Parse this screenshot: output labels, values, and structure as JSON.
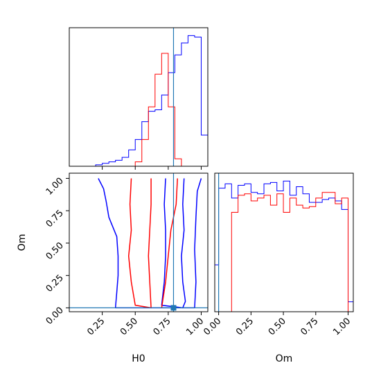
{
  "chart_data": [
    {
      "panel": "H0 marginal histogram",
      "type": "histogram",
      "x_param": "H0",
      "xlim": [
        0.0,
        1.05
      ],
      "truth_x": 0.79,
      "x_ticks": [
        0.25,
        0.5,
        0.75,
        1.0
      ],
      "bin_edges": [
        0.0,
        0.05,
        0.1,
        0.15,
        0.2,
        0.25,
        0.3,
        0.35,
        0.4,
        0.45,
        0.5,
        0.55,
        0.6,
        0.65,
        0.7,
        0.75,
        0.8,
        0.85,
        0.9,
        0.95,
        1.0,
        1.05
      ],
      "series": [
        {
          "color": "#0000ff",
          "values": [
            0,
            0,
            0,
            0,
            1,
            2,
            3,
            4,
            6,
            11,
            18,
            30,
            37,
            38,
            48,
            63,
            75,
            83,
            88,
            87,
            21
          ]
        },
        {
          "color": "#ff0000",
          "values": [
            0,
            0,
            0,
            0,
            0,
            0,
            0,
            0,
            0,
            0,
            3,
            18,
            40,
            62,
            76,
            40,
            5,
            0,
            0,
            0,
            0
          ]
        }
      ]
    },
    {
      "panel": "H0 vs Om contours",
      "type": "contour",
      "x_param": "H0",
      "y_param": "Om",
      "xlim": [
        0.0,
        1.05
      ],
      "ylim": [
        -0.03,
        1.04
      ],
      "xlabel": "H0",
      "ylabel": "Om",
      "x_ticks": [
        0.25,
        0.5,
        0.75,
        1.0
      ],
      "y_ticks": [
        0.0,
        0.25,
        0.5,
        0.75,
        1.0
      ],
      "truth": {
        "x": 0.79,
        "y": 0.0
      },
      "contours": [
        {
          "color": "#0000ff",
          "level": "outer",
          "points": [
            [
              0.22,
              1.0
            ],
            [
              0.26,
              0.92
            ],
            [
              0.28,
              0.82
            ],
            [
              0.3,
              0.7
            ],
            [
              0.36,
              0.55
            ],
            [
              0.37,
              0.4
            ],
            [
              0.37,
              0.25
            ],
            [
              0.36,
              0.12
            ],
            [
              0.35,
              0.0
            ],
            [
              0.95,
              0.0
            ],
            [
              0.96,
              0.2
            ],
            [
              0.95,
              0.45
            ],
            [
              0.96,
              0.7
            ],
            [
              0.97,
              0.9
            ],
            [
              1.0,
              1.0
            ]
          ]
        },
        {
          "color": "#0000ff",
          "level": "inner",
          "points": [
            [
              0.87,
              1.0
            ],
            [
              0.86,
              0.8
            ],
            [
              0.87,
              0.6
            ],
            [
              0.85,
              0.4
            ],
            [
              0.86,
              0.2
            ],
            [
              0.88,
              0.05
            ],
            [
              0.86,
              0.0
            ],
            [
              0.7,
              0.02
            ],
            [
              0.72,
              0.2
            ],
            [
              0.73,
              0.4
            ],
            [
              0.73,
              0.6
            ],
            [
              0.72,
              0.8
            ],
            [
              0.73,
              1.0
            ]
          ]
        },
        {
          "color": "#ff0000",
          "level": "outer",
          "points": [
            [
              0.47,
              1.0
            ],
            [
              0.46,
              0.8
            ],
            [
              0.47,
              0.6
            ],
            [
              0.45,
              0.4
            ],
            [
              0.47,
              0.2
            ],
            [
              0.5,
              0.02
            ],
            [
              0.62,
              0.0
            ],
            [
              0.61,
              0.2
            ],
            [
              0.6,
              0.4
            ],
            [
              0.61,
              0.6
            ],
            [
              0.62,
              0.8
            ],
            [
              0.62,
              1.0
            ]
          ]
        },
        {
          "color": "#ff0000",
          "level": "inner",
          "points": [
            [
              0.82,
              1.0
            ],
            [
              0.81,
              0.8
            ],
            [
              0.77,
              0.6
            ],
            [
              0.75,
              0.4
            ],
            [
              0.73,
              0.2
            ],
            [
              0.7,
              0.0
            ]
          ]
        }
      ]
    },
    {
      "panel": "Om marginal histogram",
      "type": "histogram",
      "x_param": "Om",
      "xlim": [
        -0.03,
        1.04
      ],
      "xlabel": "Om",
      "truth_x": 0.0,
      "x_ticks": [
        0.0,
        0.25,
        0.5,
        0.75,
        1.0
      ],
      "bin_edges": [
        -0.03,
        0.0,
        0.05,
        0.1,
        0.15,
        0.2,
        0.25,
        0.3,
        0.35,
        0.4,
        0.45,
        0.5,
        0.55,
        0.6,
        0.65,
        0.7,
        0.75,
        0.8,
        0.85,
        0.9,
        0.95,
        1.0,
        1.04
      ],
      "series": [
        {
          "color": "#0000ff",
          "values": [
            33,
            87,
            90,
            80,
            89,
            90,
            84,
            83,
            90,
            91,
            85,
            92,
            82,
            88,
            83,
            77,
            77,
            79,
            80,
            78,
            72,
            7
          ]
        },
        {
          "color": "#ff0000",
          "values": [
            0,
            0,
            0,
            70,
            82,
            83,
            78,
            80,
            82,
            75,
            83,
            70,
            80,
            75,
            73,
            74,
            80,
            84,
            84,
            76,
            80,
            0
          ]
        }
      ]
    }
  ]
}
